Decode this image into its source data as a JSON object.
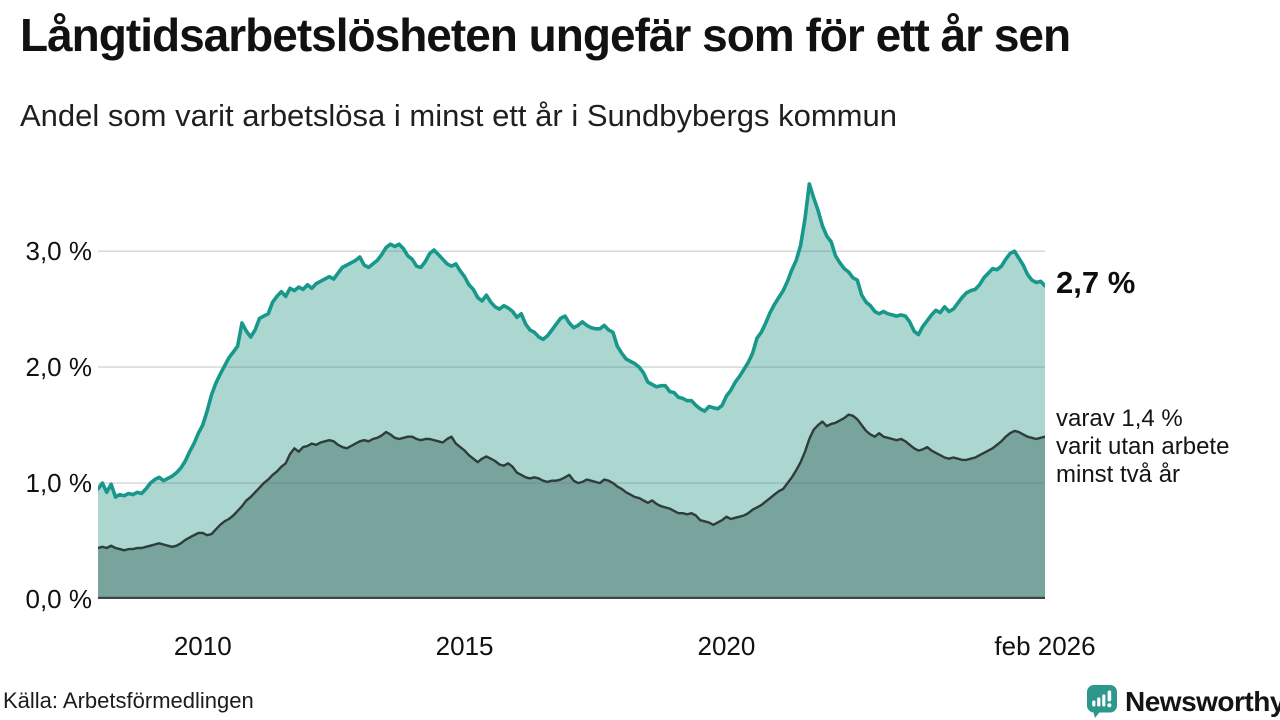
{
  "header": {
    "title": "Långtidsarbetslösheten ungefär som för ett år sen",
    "subtitle": "Andel som varit arbetslösa i minst ett år i Sundbybergs kommun"
  },
  "annotations": {
    "end_value_total": "2,7 %",
    "detail_lines": [
      "varav 1,4 %",
      "varit utan arbete",
      "minst två år"
    ]
  },
  "axis": {
    "y_ticks": [
      "3,0 %",
      "2,0 %",
      "1,0 %",
      "0,0 %"
    ],
    "x_ticks": [
      "2010",
      "2015",
      "2020",
      "feb 2026"
    ]
  },
  "source": {
    "label": "Källa: Arbetsförmedlingen"
  },
  "logo": {
    "name": "Newsworthy",
    "icon": "newsworthy-speech-bubble-chart-icon",
    "color": "#2d978d"
  },
  "chart_data": {
    "type": "area",
    "title": "Långtidsarbetslösheten ungefär som för ett år sen",
    "subtitle": "Andel som varit arbetslösa i minst ett år i Sundbybergs kommun",
    "x_unit": "month",
    "x_start": "2008-01",
    "x_end": "2026-02",
    "x_domain": [
      2008.0,
      2026.0833
    ],
    "x_tick_values": [
      2010.0,
      2015.0,
      2020.0,
      2026.0833
    ],
    "x_tick_labels": [
      "2010",
      "2015",
      "2020",
      "feb 2026"
    ],
    "ylim": [
      0,
      3.7
    ],
    "y_gridlines": [
      1.0,
      2.0,
      3.0
    ],
    "y_tick_values": [
      3,
      2,
      1,
      0
    ],
    "y_tick_labels": [
      "3,0 %",
      "2,0 %",
      "1,0 %",
      "0,0 %"
    ],
    "grid": true,
    "legend_position": "right-annotations",
    "series": [
      {
        "name": "Andel arbetslösa minst ett år",
        "end_label": "2,7 %",
        "line_color": "#18988a",
        "fill_color": "#abd7d0",
        "values": [
          0.95,
          1.0,
          0.92,
          0.99,
          0.88,
          0.9,
          0.89,
          0.91,
          0.9,
          0.92,
          0.91,
          0.95,
          1.0,
          1.03,
          1.05,
          1.02,
          1.04,
          1.06,
          1.09,
          1.13,
          1.19,
          1.27,
          1.34,
          1.43,
          1.5,
          1.62,
          1.76,
          1.86,
          1.94,
          2.01,
          2.08,
          2.13,
          2.18,
          2.38,
          2.31,
          2.26,
          2.32,
          2.42,
          2.44,
          2.46,
          2.56,
          2.61,
          2.65,
          2.61,
          2.68,
          2.66,
          2.69,
          2.67,
          2.71,
          2.68,
          2.72,
          2.74,
          2.76,
          2.78,
          2.76,
          2.81,
          2.86,
          2.88,
          2.9,
          2.92,
          2.95,
          2.88,
          2.86,
          2.89,
          2.92,
          2.97,
          3.03,
          3.06,
          3.04,
          3.06,
          3.02,
          2.96,
          2.93,
          2.87,
          2.86,
          2.91,
          2.98,
          3.01,
          2.97,
          2.93,
          2.89,
          2.87,
          2.89,
          2.83,
          2.78,
          2.71,
          2.67,
          2.6,
          2.57,
          2.62,
          2.56,
          2.52,
          2.5,
          2.53,
          2.51,
          2.48,
          2.43,
          2.46,
          2.37,
          2.32,
          2.3,
          2.26,
          2.24,
          2.27,
          2.32,
          2.37,
          2.42,
          2.44,
          2.38,
          2.34,
          2.36,
          2.39,
          2.36,
          2.34,
          2.33,
          2.33,
          2.36,
          2.32,
          2.3,
          2.18,
          2.12,
          2.07,
          2.05,
          2.03,
          2.0,
          1.95,
          1.87,
          1.85,
          1.83,
          1.84,
          1.84,
          1.79,
          1.78,
          1.74,
          1.73,
          1.71,
          1.71,
          1.67,
          1.64,
          1.62,
          1.66,
          1.65,
          1.64,
          1.67,
          1.75,
          1.8,
          1.87,
          1.92,
          1.98,
          2.04,
          2.12,
          2.25,
          2.3,
          2.38,
          2.47,
          2.54,
          2.6,
          2.66,
          2.74,
          2.84,
          2.92,
          3.05,
          3.28,
          3.58,
          3.46,
          3.35,
          3.22,
          3.13,
          3.08,
          2.96,
          2.9,
          2.85,
          2.82,
          2.77,
          2.75,
          2.62,
          2.56,
          2.53,
          2.48,
          2.46,
          2.48,
          2.46,
          2.45,
          2.44,
          2.45,
          2.44,
          2.39,
          2.31,
          2.28,
          2.35,
          2.4,
          2.45,
          2.49,
          2.47,
          2.52,
          2.48,
          2.5,
          2.55,
          2.6,
          2.64,
          2.66,
          2.67,
          2.71,
          2.77,
          2.81,
          2.85,
          2.84,
          2.87,
          2.93,
          2.98,
          3.0,
          2.94,
          2.88,
          2.8,
          2.75,
          2.73,
          2.74,
          2.7
        ]
      },
      {
        "name": "Andel arbetslösa minst två år",
        "end_label": "1,4 %",
        "line_color": "#2e3d3b",
        "fill_color": "#78a49d",
        "values": [
          0.44,
          0.45,
          0.44,
          0.46,
          0.44,
          0.43,
          0.42,
          0.43,
          0.43,
          0.44,
          0.44,
          0.45,
          0.46,
          0.47,
          0.48,
          0.47,
          0.46,
          0.45,
          0.46,
          0.48,
          0.51,
          0.53,
          0.55,
          0.57,
          0.57,
          0.55,
          0.56,
          0.6,
          0.64,
          0.67,
          0.69,
          0.72,
          0.76,
          0.8,
          0.85,
          0.88,
          0.92,
          0.96,
          1.0,
          1.03,
          1.07,
          1.1,
          1.14,
          1.17,
          1.25,
          1.3,
          1.27,
          1.31,
          1.32,
          1.34,
          1.33,
          1.35,
          1.36,
          1.37,
          1.36,
          1.33,
          1.31,
          1.3,
          1.32,
          1.34,
          1.36,
          1.37,
          1.36,
          1.38,
          1.39,
          1.41,
          1.44,
          1.42,
          1.39,
          1.38,
          1.39,
          1.4,
          1.4,
          1.38,
          1.37,
          1.38,
          1.38,
          1.37,
          1.36,
          1.35,
          1.38,
          1.4,
          1.34,
          1.31,
          1.28,
          1.24,
          1.21,
          1.18,
          1.21,
          1.23,
          1.21,
          1.19,
          1.16,
          1.15,
          1.17,
          1.14,
          1.09,
          1.07,
          1.05,
          1.04,
          1.05,
          1.04,
          1.02,
          1.01,
          1.02,
          1.02,
          1.03,
          1.05,
          1.07,
          1.02,
          1.0,
          1.01,
          1.03,
          1.02,
          1.01,
          1.0,
          1.03,
          1.02,
          1.0,
          0.97,
          0.95,
          0.92,
          0.9,
          0.88,
          0.87,
          0.85,
          0.83,
          0.85,
          0.82,
          0.8,
          0.79,
          0.78,
          0.76,
          0.74,
          0.74,
          0.73,
          0.74,
          0.72,
          0.68,
          0.67,
          0.66,
          0.64,
          0.66,
          0.68,
          0.71,
          0.69,
          0.7,
          0.71,
          0.72,
          0.74,
          0.77,
          0.79,
          0.81,
          0.84,
          0.87,
          0.9,
          0.93,
          0.95,
          1.0,
          1.05,
          1.11,
          1.18,
          1.27,
          1.38,
          1.46,
          1.5,
          1.53,
          1.49,
          1.51,
          1.52,
          1.54,
          1.56,
          1.59,
          1.58,
          1.55,
          1.5,
          1.45,
          1.42,
          1.4,
          1.43,
          1.4,
          1.39,
          1.38,
          1.37,
          1.38,
          1.36,
          1.33,
          1.3,
          1.28,
          1.29,
          1.31,
          1.28,
          1.26,
          1.24,
          1.22,
          1.21,
          1.22,
          1.21,
          1.2,
          1.2,
          1.21,
          1.22,
          1.24,
          1.26,
          1.28,
          1.3,
          1.33,
          1.36,
          1.4,
          1.43,
          1.45,
          1.44,
          1.42,
          1.4,
          1.39,
          1.38,
          1.39,
          1.4
        ]
      }
    ]
  }
}
